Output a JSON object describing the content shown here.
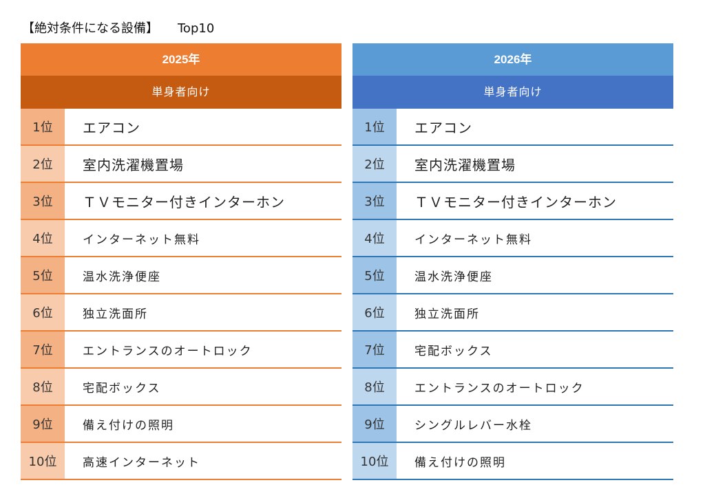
{
  "title": {
    "main": "【絶対条件になる設備】",
    "sub": "Top10"
  },
  "tables": [
    {
      "year": "2025年",
      "segment": "単身者向け",
      "ranks": [
        "1位",
        "2位",
        "3位",
        "4位",
        "5位",
        "6位",
        "7位",
        "8位",
        "9位",
        "10位"
      ],
      "items": [
        "エアコン",
        "室内洗濯機置場",
        "ＴＶモニター付きインターホン",
        "インターネット無料",
        "温水洗浄便座",
        "独立洗面所",
        "エントランスのオートロック",
        "宅配ボックス",
        "備え付けの照明",
        "高速インターネット"
      ]
    },
    {
      "year": "2026年",
      "segment": "単身者向け",
      "ranks": [
        "1位",
        "2位",
        "3位",
        "4位",
        "5位",
        "6位",
        "7位",
        "8位",
        "9位",
        "10位"
      ],
      "items": [
        "エアコン",
        "室内洗濯機置場",
        "ＴＶモニター付きインターホン",
        "インターネット無料",
        "温水洗浄便座",
        "独立洗面所",
        "宅配ボックス",
        "エントランスのオートロック",
        "シングルレバー水栓",
        "備え付けの照明"
      ]
    }
  ]
}
